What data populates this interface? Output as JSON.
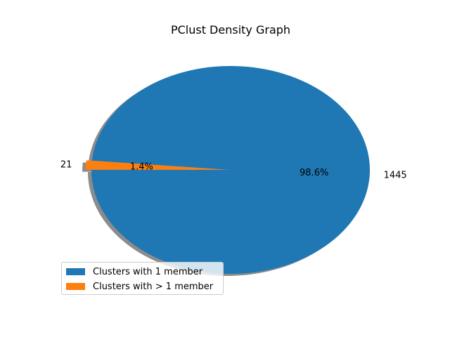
{
  "chart_data": {
    "type": "pie",
    "title": "PClust Density Graph",
    "slices": [
      {
        "label": "Clusters with 1 member",
        "value": 1445,
        "percent_label": "98.6%",
        "color": "#1f77b4"
      },
      {
        "label": "Clusters with > 1 member",
        "value": 21,
        "percent_label": "1.4%",
        "color": "#ff7f0e",
        "exploded": true
      }
    ],
    "shadow": true,
    "legend": {
      "placement": "lower-left",
      "entries": [
        "Clusters with 1 member",
        "Clusters with > 1 member"
      ]
    }
  }
}
